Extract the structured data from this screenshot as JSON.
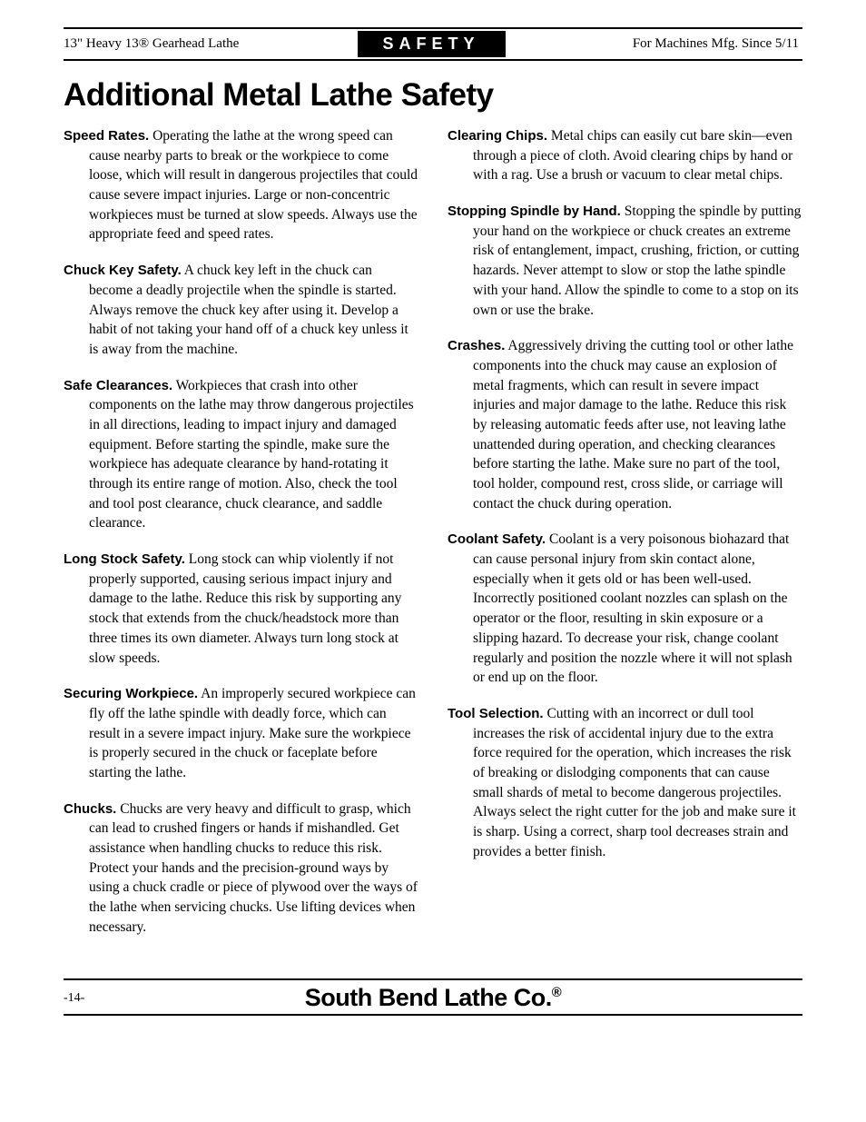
{
  "header": {
    "left": "13\" Heavy 13® Gearhead Lathe",
    "center": "SAFETY",
    "right": "For Machines Mfg. Since 5/11"
  },
  "title": "Additional Metal Lathe Safety",
  "left_items": [
    {
      "title": "Speed Rates.",
      "body": " Operating the lathe at the wrong speed can cause nearby parts to break or the workpiece to come loose, which will result in dangerous projectiles that could cause severe impact injuries. Large or non-concentric workpieces must be turned at slow speeds. Always use the appropriate feed and speed rates."
    },
    {
      "title": "Chuck Key Safety.",
      "body": " A chuck key left in the chuck can become a deadly projectile when the spindle is started. Always remove the chuck key after using it. Develop a habit of not taking your hand off of a chuck key unless it is away from the machine."
    },
    {
      "title": "Safe Clearances.",
      "body": " Workpieces that crash into other components on the lathe may throw dangerous projectiles in all directions, leading to impact injury and damaged equipment. Before starting the spindle, make sure the workpiece has adequate clearance by hand-rotating it through its entire range of motion. Also, check the tool and tool post clearance, chuck clearance, and saddle clearance."
    },
    {
      "title": "Long Stock Safety.",
      "body": " Long stock can whip violently if not properly supported, causing serious impact injury and damage to the lathe. Reduce this risk by supporting any stock that extends from the chuck/headstock more than three times its own diameter. Always turn long stock at slow speeds."
    },
    {
      "title": "Securing Workpiece.",
      "body": " An improperly secured workpiece can fly off the lathe spindle with deadly force, which can result in a severe impact injury. Make sure the workpiece is properly secured in the chuck or faceplate before starting the lathe."
    },
    {
      "title": "Chucks.",
      "body": " Chucks are very heavy and difficult to grasp, which can lead to crushed fingers or hands if mishandled. Get assistance when handling chucks to reduce this risk. Protect your hands and the precision-ground ways by using a chuck cradle or piece of plywood over the ways of the lathe when servicing chucks. Use lifting devices when necessary."
    }
  ],
  "right_items": [
    {
      "title": "Clearing Chips.",
      "body": " Metal chips can easily cut bare skin—even through a piece of cloth. Avoid clearing chips by hand or with a rag. Use a brush or vacuum to clear metal chips."
    },
    {
      "title": "Stopping Spindle by Hand.",
      "body": " Stopping the spindle by putting your hand on the workpiece or chuck creates an extreme risk of entanglement, impact, crushing, friction, or cutting hazards. Never attempt to slow or stop the lathe spindle with your hand. Allow the spindle to come to a stop on its own or use the brake."
    },
    {
      "title": "Crashes.",
      "body": " Aggressively driving the cutting tool or other lathe components into the chuck may cause an explosion of metal fragments, which can result in severe impact injuries and major damage to the lathe. Reduce this risk by releasing automatic feeds after use, not leaving lathe unattended during operation, and checking clearances before starting the lathe. Make sure no part of the tool, tool holder, compound rest, cross slide, or carriage will contact the chuck during operation."
    },
    {
      "title": "Coolant Safety.",
      "body": " Coolant is a very poisonous biohazard that can cause personal injury from skin contact alone, especially when it gets old or has been well-used. Incorrectly positioned coolant nozzles can splash on the operator or the floor, resulting in skin exposure or a slipping hazard. To decrease your risk, change coolant regularly and position the nozzle where it will not splash or end up on the floor."
    },
    {
      "title": "Tool Selection.",
      "body": " Cutting with an incorrect or dull tool increases the risk of accidental injury due to the extra force required for the operation, which increases the risk of breaking or dislodging components that can cause small shards of metal to become dangerous projectiles. Always select the right cutter for the job and make sure it is sharp. Using a correct, sharp tool decreases strain and provides a better finish."
    }
  ],
  "footer": {
    "page": "-14-",
    "company": "South Bend Lathe Co.",
    "reg": "®"
  }
}
